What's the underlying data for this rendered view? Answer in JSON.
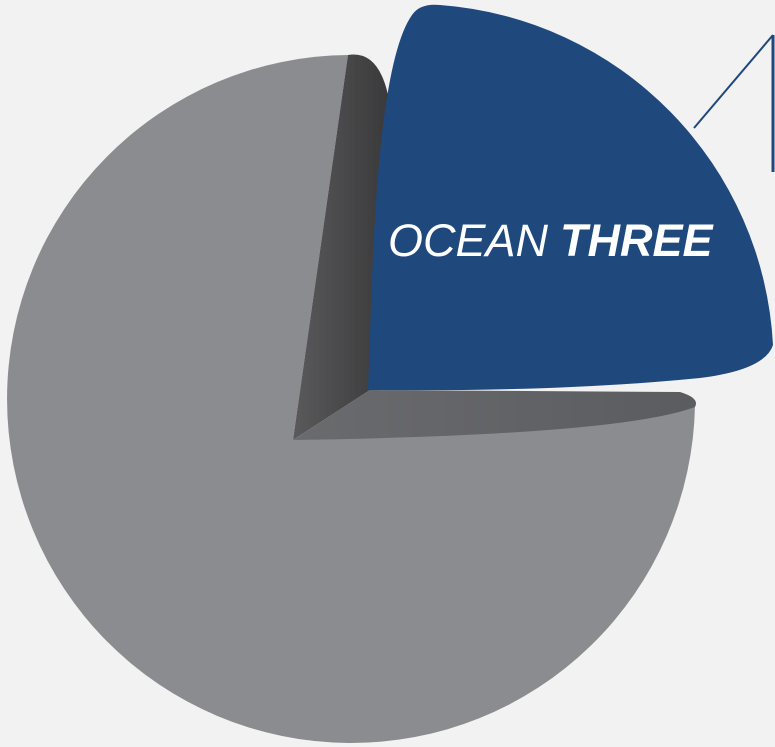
{
  "label": {
    "light": "OCEAN",
    "bold": "THREE"
  }
}
